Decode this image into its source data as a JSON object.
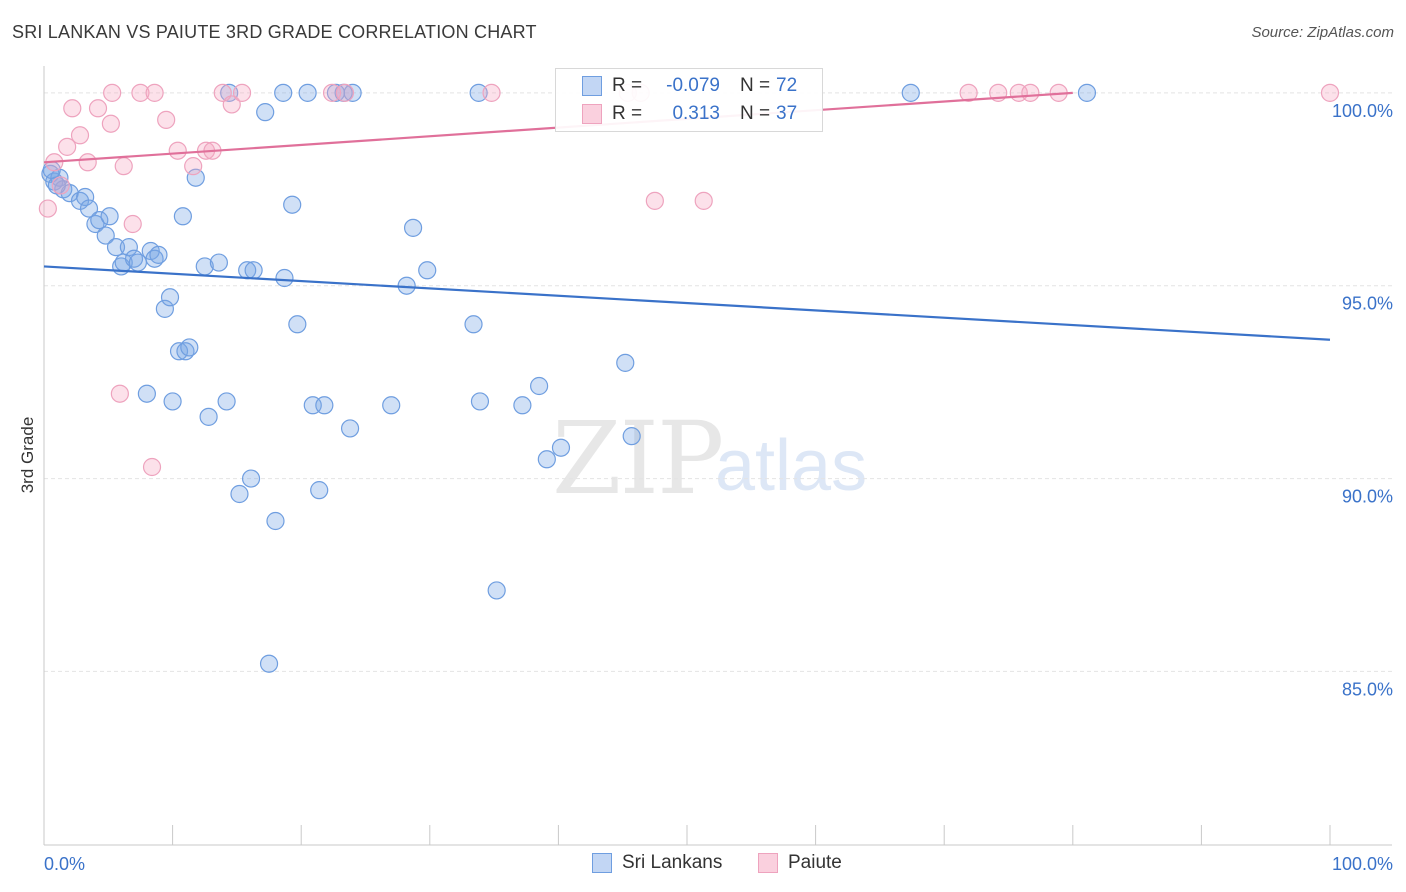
{
  "title": "SRI LANKAN VS PAIUTE 3RD GRADE CORRELATION CHART",
  "source": "Source: ZipAtlas.com",
  "watermark": {
    "zip": "ZIP",
    "atlas": "atlas"
  },
  "colors": {
    "blue": "#3a72c9",
    "blue_fill": "rgba(120,165,230,0.35)",
    "blue_stroke": "#6f9ee0",
    "pink": "#e0709a",
    "pink_fill": "rgba(245,170,195,0.35)",
    "pink_stroke": "#eea3be",
    "grid": "#e4e4e4",
    "tick_label": "#3a72c9"
  },
  "legend": {
    "r_label": "R =",
    "n_label": "N =",
    "series": [
      {
        "name": "Sri Lankans",
        "r": "-0.079",
        "n": "72"
      },
      {
        "name": "Paiute",
        "r": "0.313",
        "n": "37"
      }
    ]
  },
  "chart_data": {
    "type": "scatter",
    "title": "SRI LANKAN VS PAIUTE 3RD GRADE CORRELATION CHART",
    "xlabel": "",
    "ylabel": "3rd Grade",
    "xlim": [
      0,
      100
    ],
    "ylim": [
      80.5,
      100.8
    ],
    "x_tick_labels": [
      "0.0%",
      "100.0%"
    ],
    "y_ticks": [
      85,
      90,
      95,
      100
    ],
    "y_tick_labels": [
      "85.0%",
      "90.0%",
      "95.0%",
      "100.0%"
    ],
    "grid": true,
    "series": [
      {
        "name": "Sri Lankans",
        "trend": {
          "x": [
            0,
            100
          ],
          "y": [
            95.5,
            93.6
          ]
        },
        "points": [
          [
            0.5,
            97.9
          ],
          [
            0.8,
            97.7
          ],
          [
            1.2,
            97.8
          ],
          [
            1.5,
            97.5
          ],
          [
            2.0,
            97.4
          ],
          [
            2.8,
            97.2
          ],
          [
            3.2,
            97.3
          ],
          [
            3.5,
            97.0
          ],
          [
            4.0,
            96.6
          ],
          [
            4.3,
            96.7
          ],
          [
            5.1,
            96.8
          ],
          [
            4.8,
            96.3
          ],
          [
            5.6,
            96.0
          ],
          [
            6.0,
            95.5
          ],
          [
            6.2,
            95.6
          ],
          [
            6.6,
            96.0
          ],
          [
            7.0,
            95.7
          ],
          [
            7.3,
            95.6
          ],
          [
            8.3,
            95.9
          ],
          [
            8.6,
            95.7
          ],
          [
            8.9,
            95.8
          ],
          [
            9.4,
            94.4
          ],
          [
            9.8,
            94.7
          ],
          [
            10.5,
            93.3
          ],
          [
            11.0,
            93.3
          ],
          [
            11.3,
            93.4
          ],
          [
            10.8,
            96.8
          ],
          [
            12.5,
            95.5
          ],
          [
            13.6,
            95.6
          ],
          [
            15.8,
            95.4
          ],
          [
            16.3,
            95.4
          ],
          [
            18.7,
            95.2
          ],
          [
            17.2,
            99.5
          ],
          [
            19.3,
            97.1
          ],
          [
            19.7,
            94.0
          ],
          [
            8.0,
            92.2
          ],
          [
            10.0,
            92.0
          ],
          [
            12.8,
            91.6
          ],
          [
            14.2,
            92.0
          ],
          [
            20.9,
            91.9
          ],
          [
            21.8,
            91.9
          ],
          [
            23.8,
            91.3
          ],
          [
            27.0,
            91.9
          ],
          [
            28.2,
            95.0
          ],
          [
            28.7,
            96.5
          ],
          [
            29.8,
            95.4
          ],
          [
            33.4,
            94.0
          ],
          [
            33.9,
            92.0
          ],
          [
            35.2,
            87.1
          ],
          [
            37.2,
            91.9
          ],
          [
            38.5,
            92.4
          ],
          [
            39.1,
            90.5
          ],
          [
            40.2,
            90.8
          ],
          [
            45.2,
            93.0
          ],
          [
            45.7,
            91.1
          ],
          [
            16.1,
            90.0
          ],
          [
            15.2,
            89.6
          ],
          [
            21.4,
            89.7
          ],
          [
            18.0,
            88.9
          ],
          [
            17.5,
            85.2
          ],
          [
            11.8,
            97.8
          ],
          [
            14.4,
            100.0
          ],
          [
            18.6,
            100.0
          ],
          [
            20.5,
            100.0
          ],
          [
            22.7,
            100.0
          ],
          [
            23.3,
            100.0
          ],
          [
            24.0,
            100.0
          ],
          [
            33.8,
            100.0
          ],
          [
            67.4,
            100.0
          ],
          [
            81.1,
            100.0
          ],
          [
            1.0,
            97.6
          ],
          [
            0.6,
            98.0
          ]
        ]
      },
      {
        "name": "Paiute",
        "trend": {
          "x": [
            0,
            80
          ],
          "y": [
            98.2,
            100.0
          ]
        },
        "points": [
          [
            0.3,
            97.0
          ],
          [
            0.8,
            98.2
          ],
          [
            1.3,
            97.6
          ],
          [
            1.8,
            98.6
          ],
          [
            2.2,
            99.6
          ],
          [
            2.8,
            98.9
          ],
          [
            3.4,
            98.2
          ],
          [
            4.2,
            99.6
          ],
          [
            5.2,
            99.2
          ],
          [
            5.3,
            100.0
          ],
          [
            6.2,
            98.1
          ],
          [
            6.9,
            96.6
          ],
          [
            7.5,
            100.0
          ],
          [
            8.6,
            100.0
          ],
          [
            9.5,
            99.3
          ],
          [
            10.4,
            98.5
          ],
          [
            11.6,
            98.1
          ],
          [
            12.6,
            98.5
          ],
          [
            13.1,
            98.5
          ],
          [
            13.9,
            100.0
          ],
          [
            14.6,
            99.7
          ],
          [
            15.4,
            100.0
          ],
          [
            22.4,
            100.0
          ],
          [
            23.4,
            100.0
          ],
          [
            34.8,
            100.0
          ],
          [
            45.4,
            100.0
          ],
          [
            46.4,
            100.0
          ],
          [
            47.5,
            97.2
          ],
          [
            51.3,
            97.2
          ],
          [
            71.9,
            100.0
          ],
          [
            74.2,
            100.0
          ],
          [
            75.8,
            100.0
          ],
          [
            76.7,
            100.0
          ],
          [
            78.9,
            100.0
          ],
          [
            100.0,
            100.0
          ],
          [
            5.9,
            92.2
          ],
          [
            8.4,
            90.3
          ]
        ]
      }
    ]
  }
}
